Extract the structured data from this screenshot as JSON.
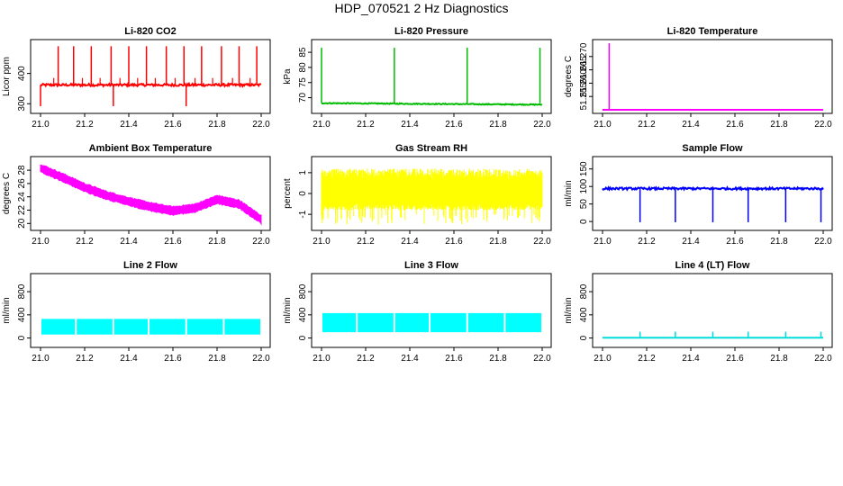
{
  "figure_title": "HDP_070521  2 Hz Diagnostics",
  "chart_data": [
    {
      "type": "line",
      "title": "Li-820 CO2",
      "ylabel": "Licor ppm",
      "color": "#ff0000",
      "xlim": [
        21.0,
        22.0
      ],
      "xticks": [
        "21.0",
        "21.2",
        "21.4",
        "21.6",
        "21.8",
        "22.0"
      ],
      "ylim": [
        280,
        500
      ],
      "yticks": [
        {
          "v": 300,
          "label": "300"
        },
        {
          "v": 400,
          "label": "400"
        }
      ],
      "baseline": 362,
      "noise": 4,
      "spikes_up": [
        21.08,
        21.15,
        21.23,
        21.32,
        21.4,
        21.48,
        21.57,
        21.65,
        21.73,
        21.82,
        21.9,
        21.98
      ],
      "spikes_up_to": 490,
      "small_up": [
        21.06,
        21.19,
        21.27,
        21.36,
        21.44,
        21.52,
        21.61,
        21.7,
        21.78,
        21.87,
        21.95
      ],
      "small_up_to": 385,
      "spikes_down": [
        21.0,
        21.33,
        21.66
      ],
      "spikes_down_to": 292
    },
    {
      "type": "line",
      "title": "Li-820 Pressure",
      "ylabel": "kPa",
      "color": "#00bb00",
      "xlim": [
        21.0,
        22.0
      ],
      "xticks": [
        "21.0",
        "21.2",
        "21.4",
        "21.6",
        "21.8",
        "22.0"
      ],
      "ylim": [
        66,
        88
      ],
      "yticks": [
        {
          "v": 70,
          "label": "70"
        },
        {
          "v": 75,
          "label": "75"
        },
        {
          "v": 80,
          "label": "80"
        },
        {
          "v": 85,
          "label": "85"
        }
      ],
      "baseline": 68.2,
      "noise": 0.15,
      "drift": -0.5,
      "spikes_up": [
        21.0,
        21.33,
        21.66,
        21.99
      ],
      "spikes_up_to": 86.5
    },
    {
      "type": "line",
      "title": "Li-820 Temperature",
      "ylabel": "degrees C",
      "color": "#ff00ff",
      "xlim": [
        21.0,
        22.0
      ],
      "xticks": [
        "21.0",
        "21.2",
        "21.4",
        "21.6",
        "21.8",
        "22.0"
      ],
      "ylim": [
        51.25,
        51.275
      ],
      "yticks": [
        {
          "v": 51.255,
          "label": "51.255"
        },
        {
          "v": 51.26,
          "label": "51.260"
        },
        {
          "v": 51.265,
          "label": "51.265"
        },
        {
          "v": 51.27,
          "label": "51.270"
        }
      ],
      "baseline": 51.25,
      "noise": 0,
      "spikes_up": [
        21.03
      ],
      "spikes_up_to": 51.275
    },
    {
      "type": "band",
      "title": "Ambient Box Temperature",
      "ylabel": "degrees C",
      "color": "#ff00ff",
      "xlim": [
        21.0,
        22.0
      ],
      "xticks": [
        "21.0",
        "21.2",
        "21.4",
        "21.6",
        "21.8",
        "22.0"
      ],
      "ylim": [
        19.5,
        29.5
      ],
      "yticks": [
        {
          "v": 20,
          "label": "20"
        },
        {
          "v": 22,
          "label": "22"
        },
        {
          "v": 24,
          "label": "24"
        },
        {
          "v": 26,
          "label": "26"
        },
        {
          "v": 28,
          "label": "28"
        }
      ],
      "curve": [
        [
          21.0,
          28.3
        ],
        [
          21.1,
          26.9
        ],
        [
          21.2,
          25.4
        ],
        [
          21.3,
          24.2
        ],
        [
          21.4,
          23.3
        ],
        [
          21.5,
          22.5
        ],
        [
          21.6,
          21.9
        ],
        [
          21.7,
          22.3
        ],
        [
          21.8,
          23.6
        ],
        [
          21.9,
          22.9
        ],
        [
          22.0,
          20.6
        ]
      ],
      "halfwidth": 0.7
    },
    {
      "type": "noise",
      "title": "Gas Stream RH",
      "ylabel": "percent",
      "color": "#ffff00",
      "xlim": [
        21.0,
        22.0
      ],
      "xticks": [
        "21.0",
        "21.2",
        "21.4",
        "21.6",
        "21.8",
        "22.0"
      ],
      "ylim": [
        -1.6,
        1.6
      ],
      "yticks": [
        {
          "v": -1,
          "label": "-1"
        },
        {
          "v": 0,
          "label": "0"
        },
        {
          "v": 1,
          "label": "1"
        }
      ],
      "low": -0.8,
      "high": 1.2,
      "min": -1.5
    },
    {
      "type": "line",
      "title": "Sample Flow",
      "ylabel": "ml/min",
      "color": "#0000ff",
      "xlim": [
        21.0,
        22.0
      ],
      "xticks": [
        "21.0",
        "21.2",
        "21.4",
        "21.6",
        "21.8",
        "22.0"
      ],
      "ylim": [
        -15,
        175
      ],
      "yticks": [
        {
          "v": 0,
          "label": "0"
        },
        {
          "v": 50,
          "label": "50"
        },
        {
          "v": 100,
          "label": "100"
        },
        {
          "v": 150,
          "label": "150"
        }
      ],
      "baseline": 94,
      "noise": 3,
      "spikes_down": [
        21.17,
        21.33,
        21.5,
        21.66,
        21.83,
        21.99
      ],
      "spikes_down_to": -2
    },
    {
      "type": "blocks",
      "title": "Line 2 Flow",
      "ylabel": "ml/min",
      "color": "#00ffff",
      "xlim": [
        21.0,
        22.0
      ],
      "xticks": [
        "21.0",
        "21.2",
        "21.4",
        "21.6",
        "21.8",
        "22.0"
      ],
      "ylim": [
        -100,
        1050
      ],
      "yticks": [
        {
          "v": 0,
          "label": "0"
        },
        {
          "v": 400,
          "label": "400"
        },
        {
          "v": 800,
          "label": "800"
        }
      ],
      "low": 60,
      "high": 330,
      "gaps": [
        21.16,
        21.33,
        21.49,
        21.66,
        21.83,
        22.0
      ]
    },
    {
      "type": "blocks",
      "title": "Line 3 Flow",
      "ylabel": "ml/min",
      "color": "#00ffff",
      "xlim": [
        21.0,
        22.0
      ],
      "xticks": [
        "21.0",
        "21.2",
        "21.4",
        "21.6",
        "21.8",
        "22.0"
      ],
      "ylim": [
        -100,
        1050
      ],
      "yticks": [
        {
          "v": 0,
          "label": "0"
        },
        {
          "v": 400,
          "label": "400"
        },
        {
          "v": 800,
          "label": "800"
        }
      ],
      "low": 100,
      "high": 430,
      "gaps": [
        21.16,
        21.33,
        21.49,
        21.66,
        21.83,
        22.0
      ]
    },
    {
      "type": "line",
      "title": "Line 4 (LT) Flow",
      "ylabel": "ml/min",
      "color": "#00dddd",
      "xlim": [
        21.0,
        22.0
      ],
      "xticks": [
        "21.0",
        "21.2",
        "21.4",
        "21.6",
        "21.8",
        "22.0"
      ],
      "ylim": [
        -100,
        1050
      ],
      "yticks": [
        {
          "v": 0,
          "label": "0"
        },
        {
          "v": 400,
          "label": "400"
        },
        {
          "v": 800,
          "label": "800"
        }
      ],
      "baseline": 5,
      "noise": 1,
      "spikes_up": [
        21.17,
        21.33,
        21.5,
        21.66,
        21.83,
        21.99
      ],
      "spikes_up_to": 110
    }
  ]
}
